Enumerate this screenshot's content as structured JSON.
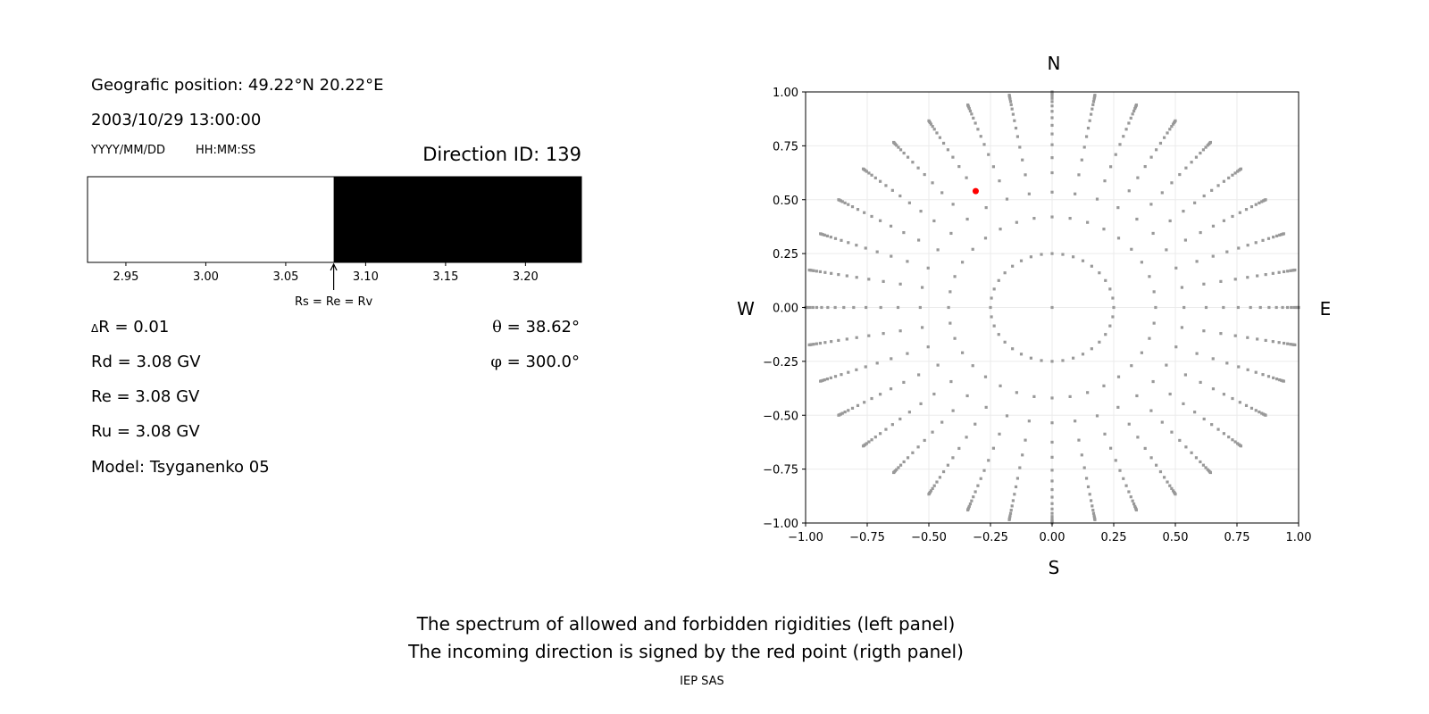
{
  "left_panel": {
    "position_text": "Geografic position: 49.22°N 20.22°E",
    "datetime_text": "2003/10/29 13:00:00",
    "date_format_label": "YYYY/MM/DD",
    "time_format_label": "HH:MM:SS",
    "direction_id_text": "Direction ID: 139",
    "arrow_label": "Rs = Re = Rv",
    "delta_r_symbol": "Δ",
    "delta_r_text": "R = 0.01",
    "rd_text": "Rd = 3.08 GV",
    "re_text": "Re = 3.08 GV",
    "ru_text": "Ru = 3.08 GV",
    "model_text": "Model: Tsyganenko 05",
    "theta_symbol": "θ",
    "theta_text": " = 38.62°",
    "phi_symbol": "φ",
    "phi_text": " = 300.0°"
  },
  "chart_data": [
    {
      "type": "bar",
      "description_role": "rigidity spectrum",
      "xlim": [
        2.926,
        3.235
      ],
      "x_ticks": [
        "2.95",
        "3.00",
        "3.05",
        "3.10",
        "3.15",
        "3.20"
      ],
      "segments": [
        {
          "from": 2.926,
          "to": 3.08,
          "color": "#ffffff"
        },
        {
          "from": 3.08,
          "to": 3.235,
          "color": "#000000"
        }
      ],
      "marker_value": 3.08,
      "marker_label": "Rs = Re = Rv"
    },
    {
      "type": "scatter",
      "xlim": [
        -1.0,
        1.0
      ],
      "ylim": [
        -1.0,
        1.0
      ],
      "grid": true,
      "x_ticks": [
        "−1.00",
        "−0.75",
        "−0.50",
        "−0.25",
        "0.00",
        "0.25",
        "0.50",
        "0.75",
        "1.00"
      ],
      "y_ticks": [
        "1.00",
        "0.75",
        "0.50",
        "0.25",
        "0.00",
        "−0.25",
        "−0.50",
        "−0.75",
        "−1.00"
      ],
      "compass": {
        "north": "N",
        "south": "S",
        "west": "W",
        "east": "E"
      },
      "grid_series": {
        "color": "#999999",
        "azimuth_step_deg": 10,
        "radii": [
          0.25,
          0.42,
          0.535,
          0.625,
          0.695,
          0.755,
          0.805,
          0.845,
          0.88,
          0.91,
          0.935,
          0.955,
          0.97,
          0.982,
          0.99,
          0.996,
          1.0
        ],
        "center_point": [
          0,
          0
        ]
      },
      "highlight_point": {
        "x": -0.31,
        "y": 0.54,
        "color": "#ff0000"
      }
    }
  ],
  "footer": {
    "line1": "The spectrum of allowed and forbidden rigidities (left panel)",
    "line2": "The incoming direction is signed by the red point (rigth panel)",
    "credit": "IEP SAS"
  }
}
